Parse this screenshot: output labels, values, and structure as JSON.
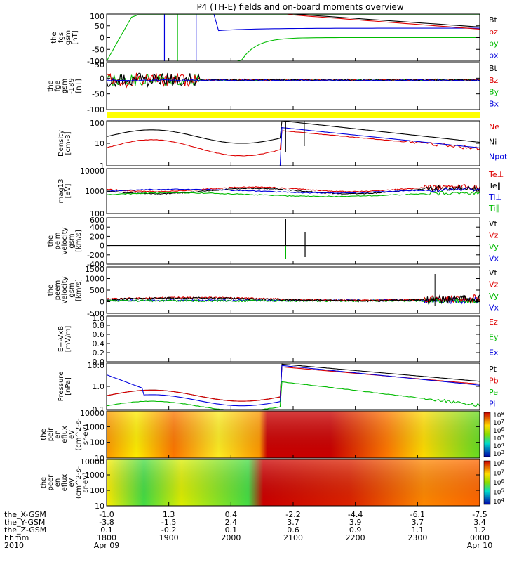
{
  "title": "P4 (TH-E) fields and on-board moments overview",
  "colors": {
    "black": "#000000",
    "red": "#dd0000",
    "green": "#00bb00",
    "blue": "#0000dd",
    "flag": "#ffff00"
  },
  "chart_data": [
    {
      "id": "fgs",
      "type": "line",
      "ylabel": [
        "the",
        "fgs",
        "gsm",
        "[nT]"
      ],
      "ylim": [
        -100,
        100
      ],
      "yticks": [
        "100",
        "50",
        "0",
        "-50",
        "-100"
      ],
      "legend": [
        {
          "label": "Bt",
          "color": "#000000"
        },
        {
          "label": "bz",
          "color": "#dd0000"
        },
        {
          "label": "by",
          "color": "#00bb00"
        },
        {
          "label": "bx",
          "color": "#0000dd"
        }
      ]
    },
    {
      "id": "fge",
      "type": "line",
      "ylabel": [
        "the",
        "fge",
        "gsm",
        "-189",
        "[nT]"
      ],
      "ylim": [
        -125,
        75
      ],
      "yticks": [
        "50",
        "0",
        "-50",
        "-100"
      ],
      "legend": [
        {
          "label": "Bt",
          "color": "#000000"
        },
        {
          "label": "Bz",
          "color": "#dd0000"
        },
        {
          "label": "By",
          "color": "#00bb00"
        },
        {
          "label": "Bx",
          "color": "#0000dd"
        }
      ]
    },
    {
      "id": "density",
      "type": "line",
      "ylabel": [
        "Density",
        "[cm-3]"
      ],
      "scale": "log",
      "yticks": [
        "100",
        "10",
        "1"
      ],
      "legend": [
        {
          "label": "Ne",
          "color": "#dd0000"
        },
        {
          "label": "Ni",
          "color": "#000000"
        },
        {
          "label": "Npot",
          "color": "#0000dd"
        }
      ]
    },
    {
      "id": "temp",
      "type": "line",
      "ylabel": [
        "mag13",
        "[eV]"
      ],
      "scale": "log",
      "yticks": [
        "10000",
        "1000",
        "100"
      ],
      "legend": [
        {
          "label": "Te⊥",
          "color": "#dd0000"
        },
        {
          "label": "Te∥",
          "color": "#000000"
        },
        {
          "label": "Ti⊥",
          "color": "#0000dd"
        },
        {
          "label": "Ti∥",
          "color": "#00bb00"
        }
      ]
    },
    {
      "id": "peim",
      "type": "line",
      "ylabel": [
        "the",
        "peim",
        "velocity",
        "gsm",
        "[km/s]"
      ],
      "ylim": [
        -400,
        600
      ],
      "yticks": [
        "600",
        "400",
        "200",
        "0",
        "-200",
        "-400"
      ],
      "legend": [
        {
          "label": "Vt",
          "color": "#000000"
        },
        {
          "label": "Vz",
          "color": "#dd0000"
        },
        {
          "label": "Vy",
          "color": "#00bb00"
        },
        {
          "label": "Vx",
          "color": "#0000dd"
        }
      ]
    },
    {
      "id": "peem",
      "type": "line",
      "ylabel": [
        "the",
        "peem",
        "velocity",
        "gsm",
        "[km/s]"
      ],
      "ylim": [
        -500,
        1500
      ],
      "yticks": [
        "1500",
        "1000",
        "500",
        "0",
        "-500"
      ],
      "legend": [
        {
          "label": "Vt",
          "color": "#000000"
        },
        {
          "label": "Vz",
          "color": "#dd0000"
        },
        {
          "label": "Vy",
          "color": "#00bb00"
        },
        {
          "label": "Vx",
          "color": "#0000dd"
        }
      ]
    },
    {
      "id": "efield",
      "type": "line",
      "ylabel": [
        "E=-VxB",
        "[mV/m]"
      ],
      "ylim": [
        0,
        1
      ],
      "yticks": [
        "1.0",
        "0.8",
        "0.6",
        "0.4",
        "0.2",
        "0.0"
      ],
      "legend": [
        {
          "label": "Ez",
          "color": "#dd0000"
        },
        {
          "label": "Ey",
          "color": "#00bb00"
        },
        {
          "label": "Ex",
          "color": "#0000dd"
        }
      ]
    },
    {
      "id": "pressure",
      "type": "line",
      "ylabel": [
        "Pressure",
        "[nPa]"
      ],
      "scale": "log",
      "yticks": [
        "10.0",
        "1.0",
        "0.1"
      ],
      "legend": [
        {
          "label": "Pt",
          "color": "#000000"
        },
        {
          "label": "Pb",
          "color": "#dd0000"
        },
        {
          "label": "Pe",
          "color": "#00bb00"
        },
        {
          "label": "Pi",
          "color": "#0000dd"
        }
      ]
    },
    {
      "id": "peir",
      "type": "heatmap",
      "ylabel": [
        "the",
        "peir",
        "en",
        "eflux",
        "eV",
        "(cm^2-s-",
        "sr-eV)"
      ],
      "yticks": [
        "10000",
        "1000",
        "100",
        "10"
      ],
      "colorbar": [
        "10^8",
        "10^7",
        "10^6",
        "10^5",
        "10^4",
        "10^3"
      ]
    },
    {
      "id": "peer",
      "type": "heatmap",
      "ylabel": [
        "the",
        "peer",
        "en",
        "eflux",
        "eV",
        "(cm^2-s-",
        "sr-eV)"
      ],
      "yticks": [
        "10000",
        "1000",
        "100",
        "10"
      ],
      "colorbar": [
        "10^8",
        "10^7",
        "10^6",
        "10^5",
        "10^4"
      ]
    }
  ],
  "xaxis": {
    "row_labels": [
      "the_X-GSM",
      "the_Y-GSM",
      "the_Z-GSM",
      "hhmm",
      "2010"
    ],
    "columns": [
      [
        "-1.0",
        "-3.8",
        "0.1",
        "1800",
        "Apr 09"
      ],
      [
        "1.3",
        "-1.5",
        "-0.2",
        "1900",
        ""
      ],
      [
        "0.4",
        "2.4",
        "0.1",
        "2000",
        ""
      ],
      [
        "-2.2",
        "3.7",
        "0.6",
        "2100",
        ""
      ],
      [
        "-4.4",
        "3.9",
        "0.9",
        "2200",
        ""
      ],
      [
        "-6.1",
        "3.7",
        "1.1",
        "2300",
        ""
      ],
      [
        "-7.5",
        "3.4",
        "1.2",
        "0000",
        "Apr 10"
      ]
    ]
  }
}
